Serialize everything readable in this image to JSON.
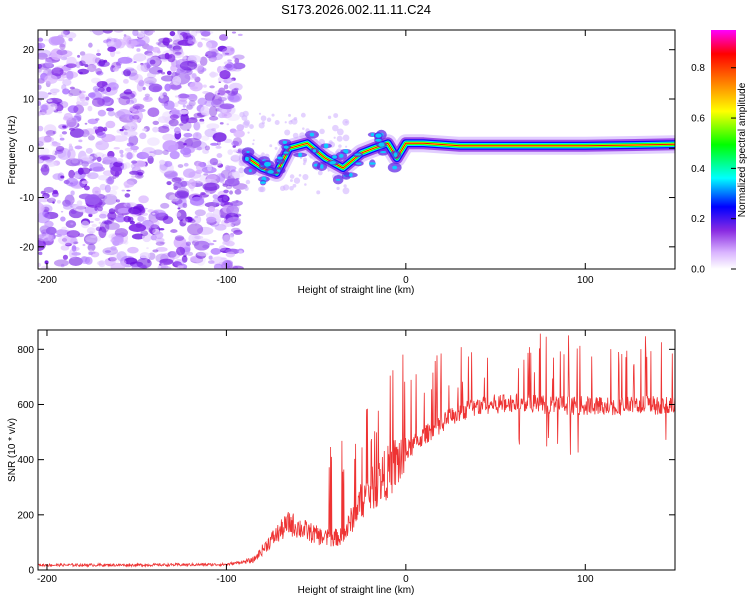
{
  "chart_data": [
    {
      "type": "heatmap",
      "title": "S173.2026.002.11.11.C24",
      "xlabel": "Height of straight line (km)",
      "ylabel": "Frequency (Hz)",
      "xlim": [
        -205,
        150
      ],
      "ylim": [
        -24.5,
        24
      ],
      "xticks": [
        -200,
        -100,
        0,
        100
      ],
      "yticks": [
        -20,
        -10,
        0,
        10,
        20
      ],
      "colorbar": {
        "label": "Normalized spectral amplitude",
        "range": [
          0.0,
          0.95
        ],
        "ticks": [
          "0.0",
          "0.2",
          "0.4",
          "0.6",
          "0.8"
        ],
        "colormap": [
          "#ffffff",
          "#d9b3ff",
          "#8a2be2",
          "#0000ff",
          "#00ffff",
          "#00ff00",
          "#ffff00",
          "#ff8000",
          "#ff0000",
          "#ff00ff"
        ]
      },
      "description_points": {
        "noise_region_x": [
          -205,
          -92
        ],
        "noise_freq_range": [
          -24.5,
          24
        ],
        "transition_region_x": [
          -92,
          0
        ],
        "signal_line_freq": [
          [
            -88,
            -2
          ],
          [
            -80,
            -4
          ],
          [
            -72,
            -5
          ],
          [
            -65,
            0
          ],
          [
            -55,
            1
          ],
          [
            -45,
            -2
          ],
          [
            -35,
            -4
          ],
          [
            -25,
            -1
          ],
          [
            -18,
            0
          ],
          [
            -10,
            1
          ],
          [
            -5,
            -2
          ],
          [
            0,
            1
          ],
          [
            10,
            1
          ],
          [
            30,
            0.5
          ],
          [
            60,
            0.5
          ],
          [
            100,
            0.5
          ],
          [
            150,
            0.8
          ]
        ]
      }
    },
    {
      "type": "line",
      "xlabel": "Height of straight line (km)",
      "ylabel": "SNR (10 * v/v)",
      "xlim": [
        -205,
        150
      ],
      "ylim": [
        0,
        870
      ],
      "xticks": [
        -200,
        -100,
        0,
        100
      ],
      "yticks": [
        0,
        200,
        400,
        600,
        800
      ],
      "series": [
        {
          "name": "SNR",
          "color": "#ee3333",
          "x": [
            -205,
            -150,
            -100,
            -85,
            -75,
            -65,
            -55,
            -45,
            -35,
            -25,
            -15,
            -5,
            5,
            15,
            25,
            35,
            45,
            60,
            80,
            100,
            120,
            150
          ],
          "values": [
            18,
            18,
            20,
            35,
            110,
            170,
            140,
            115,
            120,
            250,
            320,
            390,
            460,
            510,
            555,
            585,
            600,
            605,
            600,
            595,
            595,
            600
          ]
        }
      ]
    }
  ]
}
